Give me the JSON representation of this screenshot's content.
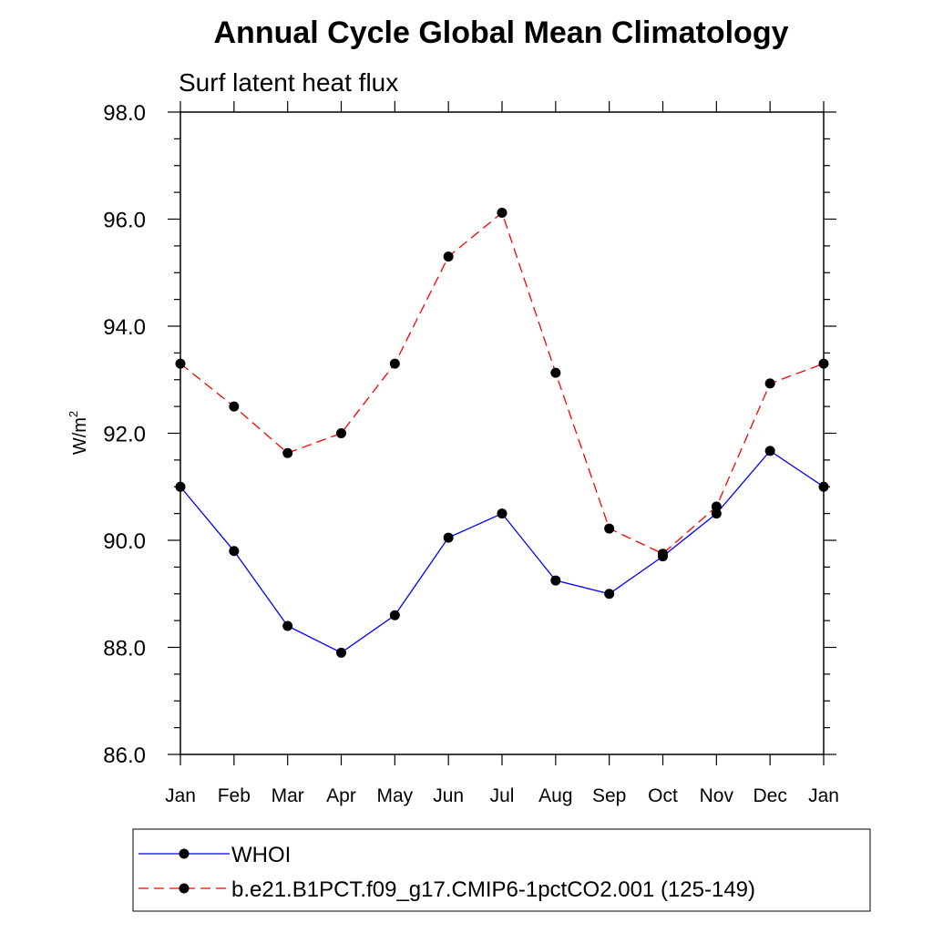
{
  "chart_data": {
    "type": "line",
    "title": "Annual Cycle Global Mean Climatology",
    "subtitle": "Surf latent heat flux",
    "ylabel_base": "W/m",
    "ylabel_exp": "2",
    "xlabel": "",
    "ylim": [
      86.0,
      98.0
    ],
    "yticks": [
      "86.0",
      "88.0",
      "90.0",
      "92.0",
      "94.0",
      "96.0",
      "98.0"
    ],
    "categories": [
      "Jan",
      "Feb",
      "Mar",
      "Apr",
      "May",
      "Jun",
      "Jul",
      "Aug",
      "Sep",
      "Oct",
      "Nov",
      "Dec",
      "Jan"
    ],
    "series": [
      {
        "name": "WHOI",
        "color": "#0000ff",
        "dash": "solid",
        "values": [
          91.0,
          89.8,
          88.4,
          87.9,
          88.6,
          90.05,
          90.5,
          89.25,
          89.0,
          89.7,
          90.5,
          91.67,
          91.0
        ]
      },
      {
        "name": "b.e21.B1PCT.f09_g17.CMIP6-1pctCO2.001 (125-149)",
        "color": "#ff0000",
        "dash": "dashed",
        "values": [
          93.3,
          92.5,
          91.63,
          92.0,
          93.3,
          95.3,
          96.12,
          93.13,
          90.22,
          89.75,
          90.63,
          92.93,
          93.3
        ]
      }
    ],
    "legend_position": "bottom"
  }
}
